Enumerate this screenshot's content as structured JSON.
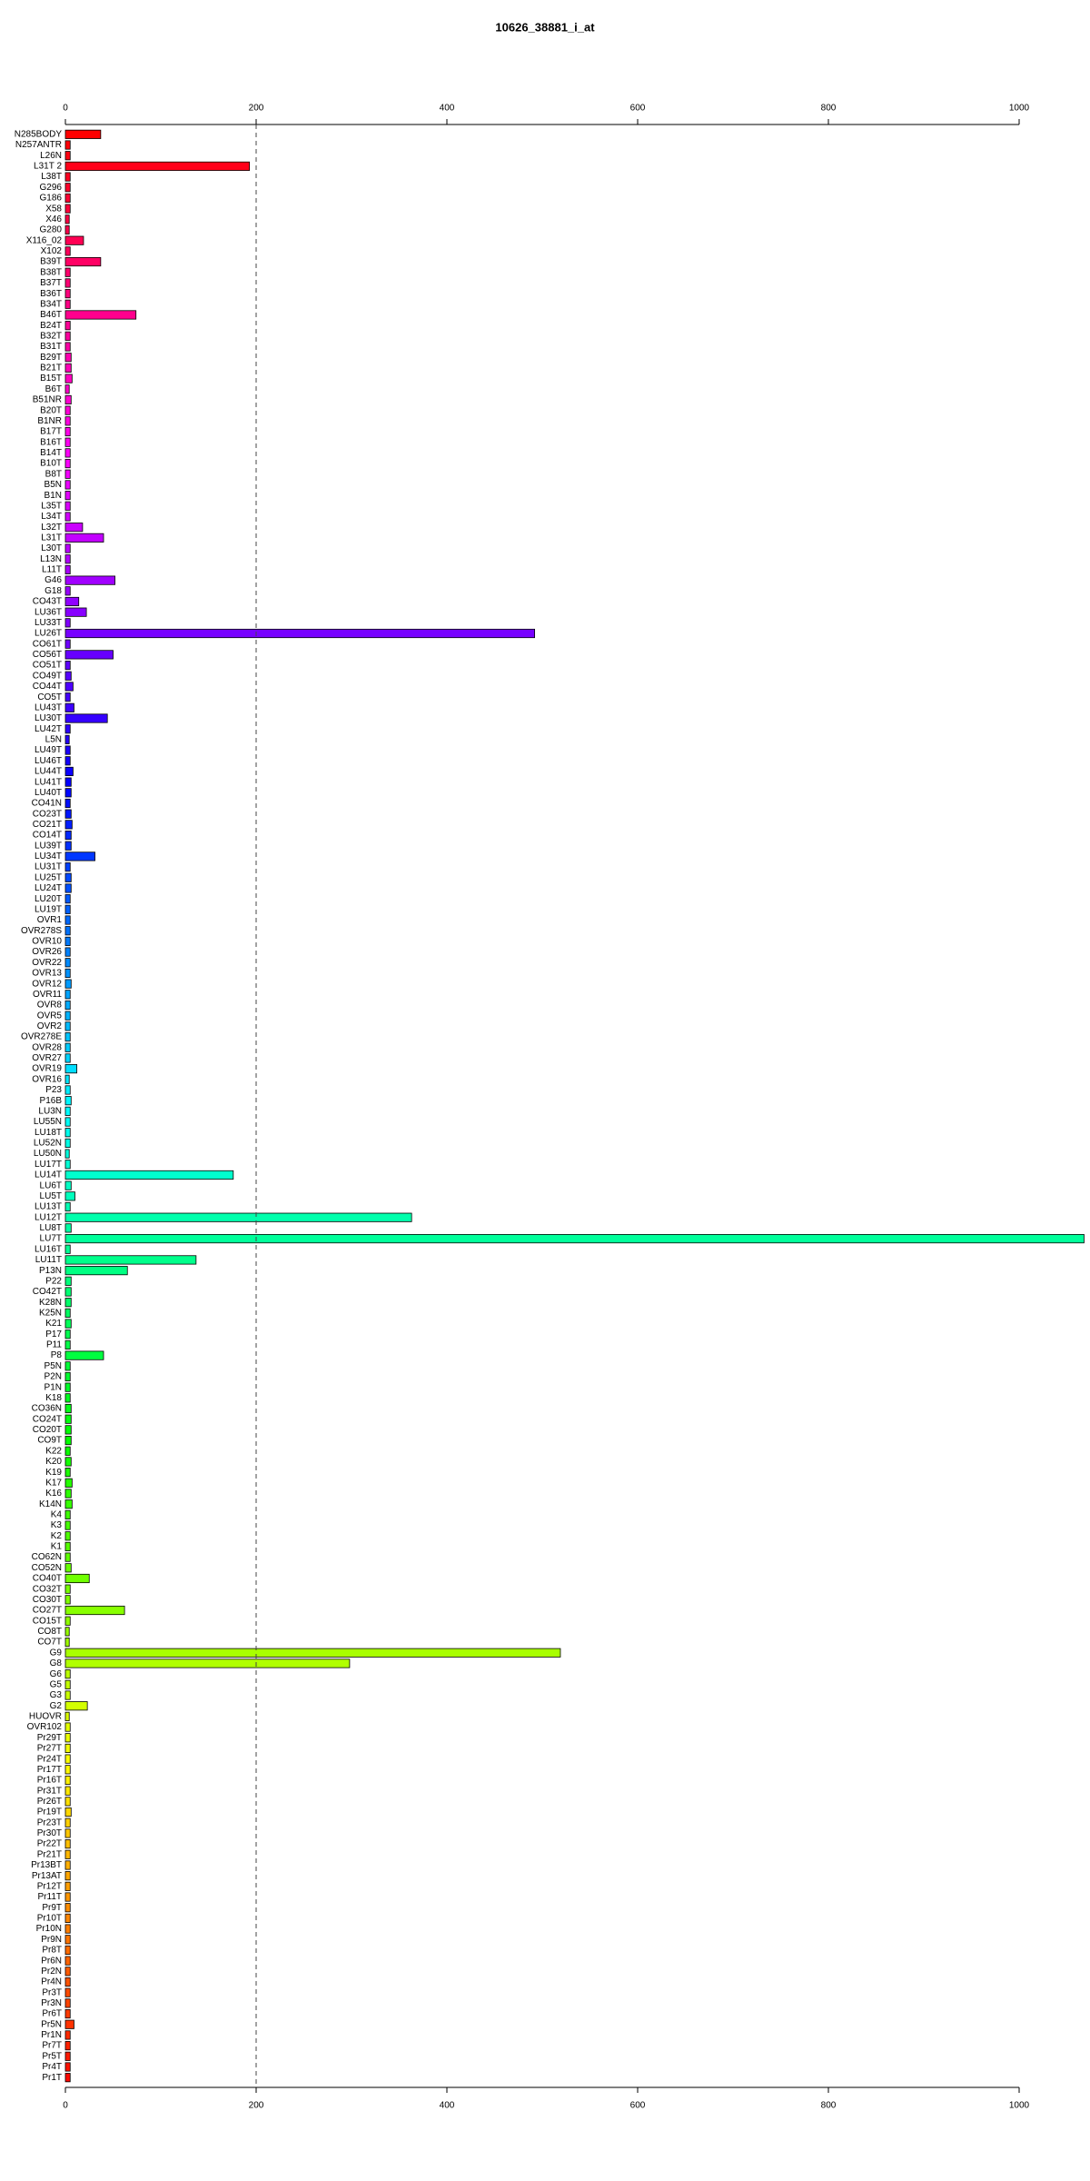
{
  "chart_data": {
    "type": "barh",
    "title": "10626_38881_i_at",
    "categories": [
      "N285BODY",
      "N257ANTR",
      "L26N",
      "L31T 2",
      "L38T",
      "G296",
      "G186",
      "X58",
      "X46",
      "G280",
      "X116_02",
      "X102",
      "B39T",
      "B38T",
      "B37T",
      "B36T",
      "B34T",
      "B46T",
      "B24T",
      "B32T",
      "B31T",
      "B29T",
      "B21T",
      "B15T",
      "B6T",
      "B51NR",
      "B20T",
      "B1NR",
      "B17T",
      "B16T",
      "B14T",
      "B10T",
      "B8T",
      "B5N",
      "B1N",
      "L35T",
      "L34T",
      "L32T",
      "L31T",
      "L30T",
      "L13N",
      "L11T",
      "G46",
      "G18",
      "CO43T",
      "LU36T",
      "LU33T",
      "LU26T",
      "CO61T",
      "CO56T",
      "CO51T",
      "CO49T",
      "CO44T",
      "CO5T",
      "LU43T",
      "LU30T",
      "LU42T",
      "L5N",
      "LU49T",
      "LU46T",
      "LU44T",
      "LU41T",
      "LU40T",
      "CO41N",
      "CO23T",
      "CO21T",
      "CO14T",
      "LU39T",
      "LU34T",
      "LU31T",
      "LU25T",
      "LU24T",
      "LU20T",
      "LU19T",
      "OVR1",
      "OVR278S",
      "OVR10",
      "OVR26",
      "OVR22",
      "OVR13",
      "OVR12",
      "OVR11",
      "OVR8",
      "OVR5",
      "OVR2",
      "OVR278E",
      "OVR28",
      "OVR27",
      "OVR19",
      "OVR16",
      "P23",
      "P16B",
      "LU3N",
      "LU55N",
      "LU18T",
      "LU52N",
      "LU50N",
      "LU17T",
      "LU14T",
      "LU6T",
      "LU5T",
      "LU13T",
      "LU12T",
      "LU8T",
      "LU7T",
      "LU16T",
      "LU11T",
      "P13N",
      "P22",
      "CO42T",
      "K28N",
      "K25N",
      "K21",
      "P17",
      "P11",
      "P8",
      "P5N",
      "P2N",
      "P1N",
      "K18",
      "CO36N",
      "CO24T",
      "CO20T",
      "CO9T",
      "K22",
      "K20",
      "K19",
      "K17",
      "K16",
      "K14N",
      "K4",
      "K3",
      "K2",
      "K1",
      "CO62N",
      "CO52N",
      "CO40T",
      "CO32T",
      "CO30T",
      "CO27T",
      "CO15T",
      "CO8T",
      "CO7T",
      "G9",
      "G8",
      "G6",
      "G5",
      "G3",
      "G2",
      "HUOVR",
      "OVR102",
      "Pr29T",
      "Pr27T",
      "Pr24T",
      "Pr17T",
      "Pr16T",
      "Pr31T",
      "Pr26T",
      "Pr19T",
      "Pr23T",
      "Pr30T",
      "Pr22T",
      "Pr21T",
      "Pr13BT",
      "Pr13AT",
      "Pr12T",
      "Pr11T",
      "Pr9T",
      "Pr10T",
      "Pr10N",
      "Pr9N",
      "Pr8T",
      "Pr6N",
      "Pr2N",
      "Pr4N",
      "Pr3T",
      "Pr3N",
      "Pr6T",
      "Pr5N",
      "Pr1N",
      "Pr7T",
      "Pr5T",
      "Pr4T",
      "Pr1T"
    ],
    "values": [
      37,
      5,
      5,
      193,
      5,
      5,
      5,
      5,
      4,
      4,
      19,
      5,
      37,
      5,
      5,
      5,
      5,
      74,
      5,
      5,
      5,
      6,
      6,
      7,
      4,
      6,
      5,
      5,
      5,
      5,
      5,
      5,
      5,
      5,
      5,
      5,
      5,
      18,
      40,
      5,
      5,
      5,
      52,
      5,
      14,
      22,
      5,
      492,
      5,
      50,
      5,
      6,
      8,
      5,
      9,
      44,
      5,
      4,
      5,
      5,
      8,
      6,
      6,
      5,
      6,
      7,
      6,
      6,
      31,
      5,
      6,
      6,
      5,
      5,
      5,
      5,
      5,
      5,
      5,
      5,
      6,
      5,
      5,
      5,
      5,
      5,
      5,
      5,
      12,
      4,
      5,
      6,
      5,
      5,
      5,
      5,
      4,
      5,
      176,
      6,
      10,
      5,
      363,
      6,
      1068,
      5,
      137,
      65,
      6,
      6,
      6,
      5,
      6,
      5,
      5,
      40,
      5,
      5,
      5,
      5,
      6,
      6,
      6,
      6,
      5,
      6,
      5,
      7,
      6,
      7,
      5,
      5,
      5,
      5,
      5,
      6,
      25,
      5,
      5,
      62,
      5,
      4,
      4,
      519,
      298,
      5,
      5,
      5,
      23,
      4,
      5,
      5,
      5,
      5,
      5,
      5,
      5,
      5,
      6,
      5,
      5,
      5,
      5,
      5,
      5,
      5,
      5,
      5,
      5,
      5,
      5,
      5,
      5,
      5,
      5,
      5,
      5,
      5,
      9,
      5,
      5,
      5,
      5,
      5
    ],
    "palette": "rainbow",
    "xlim": [
      0,
      1000
    ],
    "xticks": [
      0,
      200,
      400,
      600,
      800,
      1000
    ],
    "reference_line": 200
  }
}
